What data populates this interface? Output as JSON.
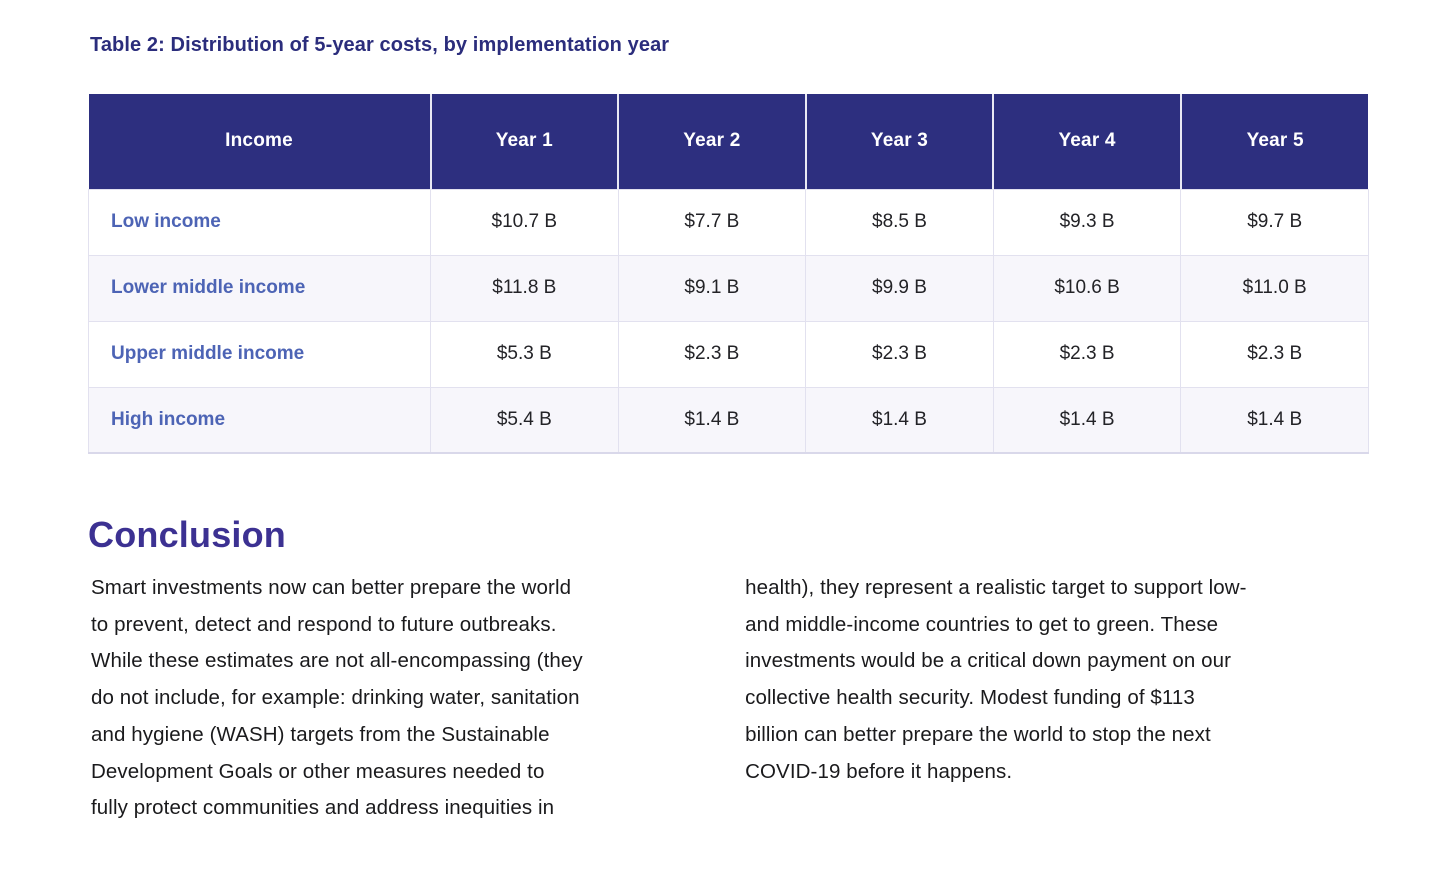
{
  "caption": "Table 2: Distribution of 5-year costs, by implementation year",
  "table": {
    "columns": [
      "Income",
      "Year 1",
      "Year 2",
      "Year 3",
      "Year 4",
      "Year 5"
    ],
    "rows": [
      {
        "label": "Low income",
        "values": [
          "$10.7 B",
          "$7.7 B",
          "$8.5 B",
          "$9.3 B",
          "$9.7 B"
        ]
      },
      {
        "label": "Lower middle income",
        "values": [
          "$11.8 B",
          "$9.1 B",
          "$9.9 B",
          "$10.6 B",
          "$11.0 B"
        ]
      },
      {
        "label": "Upper middle income",
        "values": [
          "$5.3 B",
          "$2.3 B",
          "$2.3 B",
          "$2.3 B",
          "$2.3 B"
        ]
      },
      {
        "label": "High income",
        "values": [
          "$5.4 B",
          "$1.4 B",
          "$1.4 B",
          "$1.4 B",
          "$1.4 B"
        ]
      }
    ]
  },
  "conclusion": {
    "heading": "Conclusion",
    "column_left": "Smart investments now can better prepare the world\nto prevent, detect and respond to future outbreaks.\nWhile these estimates are not all-encompassing (they\ndo not include, for example: drinking water, sanitation\nand hygiene (WASH) targets from the Sustainable\nDevelopment Goals or other measures needed to\nfully protect communities and address inequities in",
    "column_right": "health), they represent a realistic target to support low-\nand middle-income countries to get to green. These\ninvestments would be a critical down payment on our\ncollective health security. Modest funding of $113\nbillion can better prepare the world to stop the next\nCOVID-19 before it happens."
  },
  "colors": {
    "header_background": "#2d2f7f",
    "caption_text": "#2b2d7c",
    "heading_text": "#3c3192",
    "income_link": "#4d64b5",
    "alt_row_background": "#f7f6fb",
    "cell_border": "#e2e1ef",
    "body_text": "#1a1a1c"
  }
}
